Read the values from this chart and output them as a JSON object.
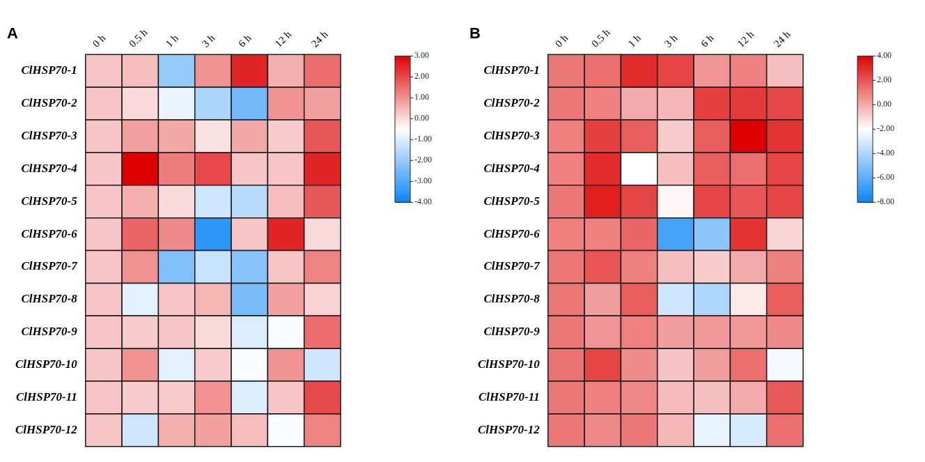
{
  "chart_data": [
    {
      "type": "heatmap",
      "title": "A",
      "categories": [
        "0 h",
        "0.5 h",
        "1 h",
        "3 h",
        "6 h",
        "12 h",
        "24 h"
      ],
      "y_categories": [
        "ClHSP70-1",
        "ClHSP70-2",
        "ClHSP70-3",
        "ClHSP70-4",
        "ClHSP70-5",
        "ClHSP70-6",
        "ClHSP70-7",
        "ClHSP70-8",
        "ClHSP70-9",
        "ClHSP70-10",
        "ClHSP70-11",
        "ClHSP70-12"
      ],
      "cells": [
        [
          0.3,
          0.4,
          -2.0,
          1.0,
          2.5,
          0.6,
          1.5
        ],
        [
          0.3,
          0.0,
          -0.8,
          -1.7,
          -2.5,
          1.0,
          0.8
        ],
        [
          0.3,
          0.8,
          0.7,
          -0.1,
          0.7,
          0.2,
          1.8
        ],
        [
          0.3,
          3.0,
          1.3,
          2.0,
          0.3,
          0.3,
          2.5
        ],
        [
          0.3,
          0.6,
          0.0,
          -1.2,
          -1.5,
          0.4,
          1.8
        ],
        [
          0.3,
          1.6,
          1.1,
          -3.5,
          0.3,
          2.5,
          0.0
        ],
        [
          0.3,
          1.0,
          -2.3,
          -1.3,
          -2.2,
          0.3,
          1.2
        ],
        [
          0.3,
          -0.9,
          0.3,
          0.5,
          -2.4,
          0.8,
          0.1
        ],
        [
          0.3,
          0.2,
          0.3,
          0.0,
          -1.0,
          -0.6,
          1.5
        ],
        [
          0.3,
          1.0,
          -0.9,
          0.2,
          -0.6,
          1.0,
          -1.2
        ],
        [
          0.3,
          0.2,
          0.2,
          1.0,
          -1.0,
          0.3,
          2.0
        ],
        [
          0.3,
          -1.2,
          0.6,
          0.8,
          0.4,
          -0.6,
          1.2
        ]
      ],
      "clim": [
        -4,
        3
      ],
      "cticks": [
        {
          "value": 3,
          "label": "3.00"
        },
        {
          "value": 2,
          "label": "2.00"
        },
        {
          "value": 1,
          "label": "1.00"
        },
        {
          "value": 0,
          "label": "0.00"
        },
        {
          "value": -1,
          "label": "-1.00"
        },
        {
          "value": -2,
          "label": "-2.00"
        },
        {
          "value": -3,
          "label": "-3.00"
        },
        {
          "value": -4,
          "label": "-4.00"
        }
      ]
    },
    {
      "type": "heatmap",
      "title": "B",
      "categories": [
        "0 h",
        "0.5 h",
        "1 h",
        "3 h",
        "6 h",
        "12 h",
        "24 h"
      ],
      "y_categories": [
        "ClHSP70-1",
        "ClHSP70-2",
        "ClHSP70-3",
        "ClHSP70-4",
        "ClHSP70-5",
        "ClHSP70-6",
        "ClHSP70-7",
        "ClHSP70-8",
        "ClHSP70-9",
        "ClHSP70-10",
        "ClHSP70-11",
        "ClHSP70-12"
      ],
      "cells": [
        [
          1.2,
          1.4,
          3.0,
          2.4,
          0.5,
          1.0,
          -0.5
        ],
        [
          1.2,
          1.0,
          0.0,
          -0.3,
          2.5,
          2.6,
          2.3
        ],
        [
          1.0,
          2.5,
          1.8,
          -0.8,
          1.8,
          4.0,
          2.8
        ],
        [
          1.0,
          3.0,
          -2.0,
          -0.5,
          1.8,
          1.4,
          2.4
        ],
        [
          1.2,
          3.3,
          2.4,
          -1.8,
          2.4,
          2.0,
          2.4
        ],
        [
          1.0,
          1.0,
          1.6,
          -6.5,
          -4.8,
          2.8,
          -1.0
        ],
        [
          1.2,
          2.0,
          1.0,
          -0.5,
          -0.8,
          0.0,
          1.0
        ],
        [
          1.2,
          0.3,
          1.8,
          -3.2,
          -4.0,
          -1.5,
          1.8
        ],
        [
          1.2,
          0.5,
          1.0,
          0.3,
          0.4,
          0.4,
          0.8
        ],
        [
          1.3,
          2.4,
          0.7,
          -0.6,
          0.3,
          1.4,
          -2.3
        ],
        [
          1.2,
          1.0,
          0.8,
          -0.4,
          -0.5,
          0.0,
          1.9
        ],
        [
          1.2,
          0.8,
          1.2,
          -0.3,
          -2.6,
          -3.0,
          1.4
        ]
      ],
      "clim": [
        -8,
        4
      ],
      "cticks": [
        {
          "value": 4,
          "label": "4.00"
        },
        {
          "value": 2,
          "label": "2.00"
        },
        {
          "value": 0,
          "label": "0.00"
        },
        {
          "value": -2,
          "label": "-2.00"
        },
        {
          "value": -4,
          "label": "-4.00"
        },
        {
          "value": -6,
          "label": "-6.00"
        },
        {
          "value": -8,
          "label": "-8.00"
        }
      ]
    }
  ]
}
